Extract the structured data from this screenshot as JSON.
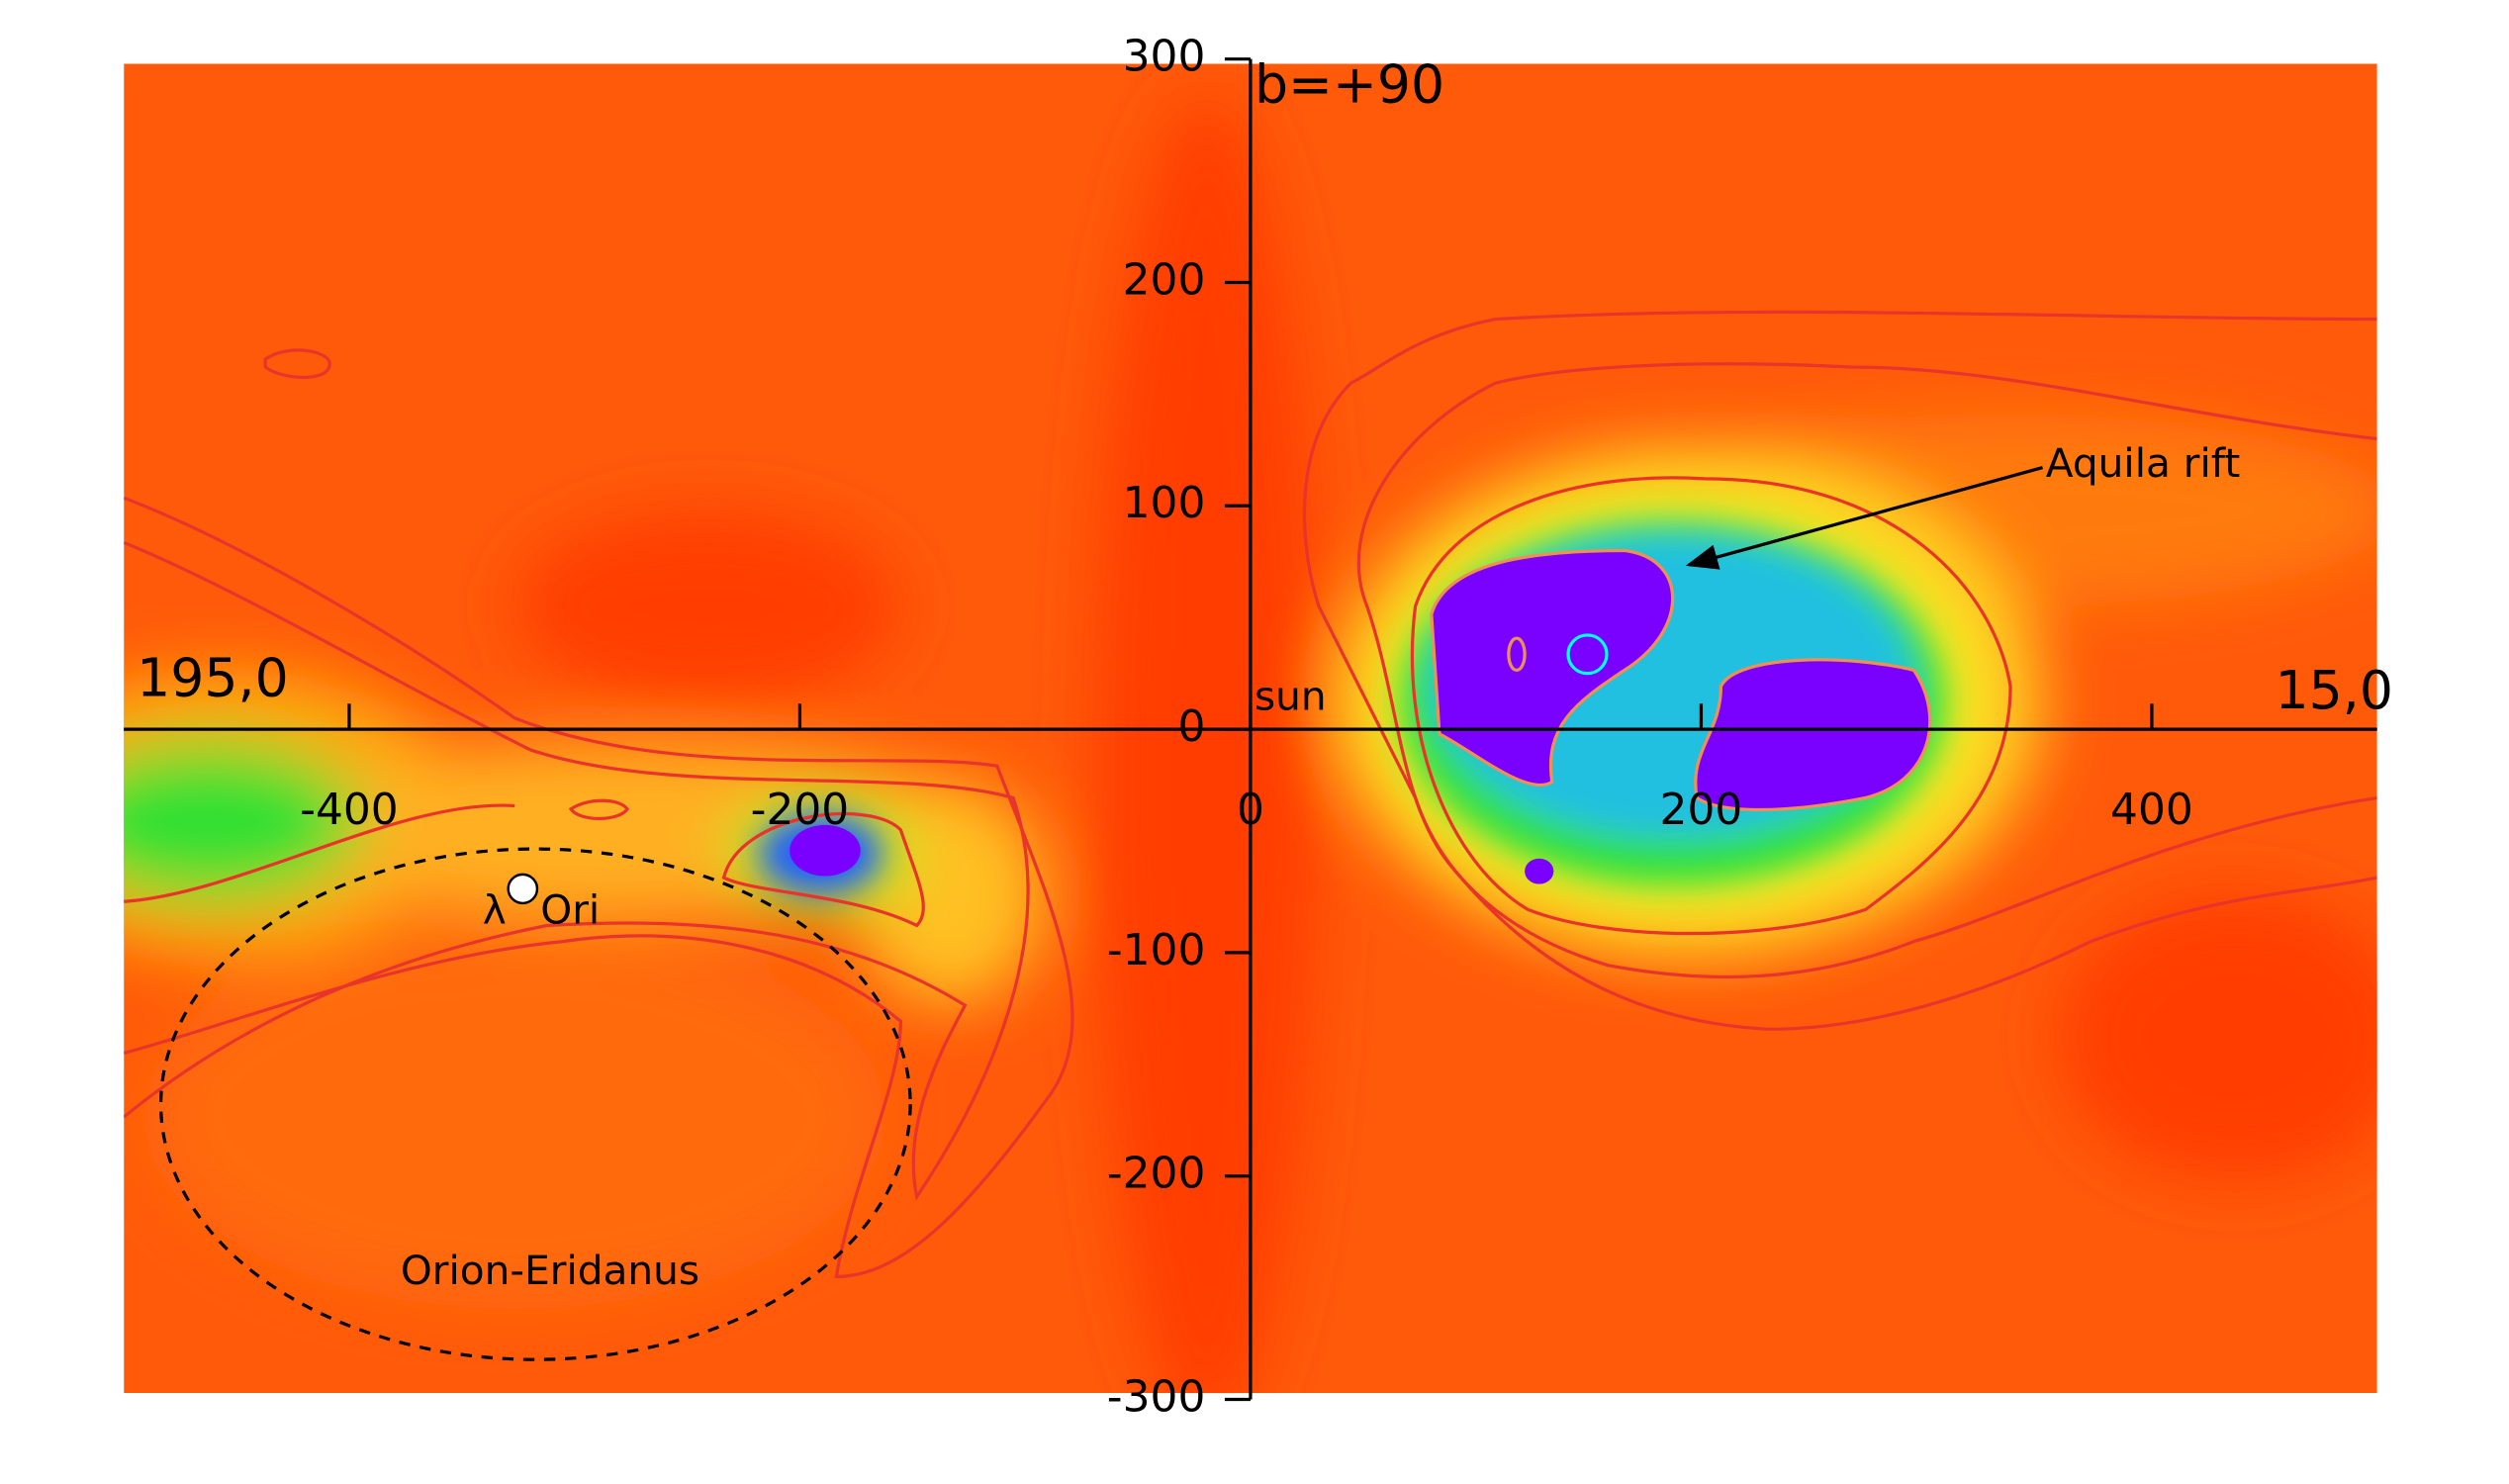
{
  "chart_data": {
    "type": "heatmap",
    "xlim": [
      -500,
      500
    ],
    "ylim": [
      -300,
      300
    ],
    "xticks": [
      -400,
      -200,
      0,
      200,
      400
    ],
    "yticks": [
      -300,
      -200,
      -100,
      0,
      100,
      200,
      300
    ],
    "annotations": [
      "195,0",
      "15,0",
      "b=+90",
      "sun",
      "Aquila rift",
      "λ",
      "Ori",
      "Orion-Eridanus"
    ]
  }
}
